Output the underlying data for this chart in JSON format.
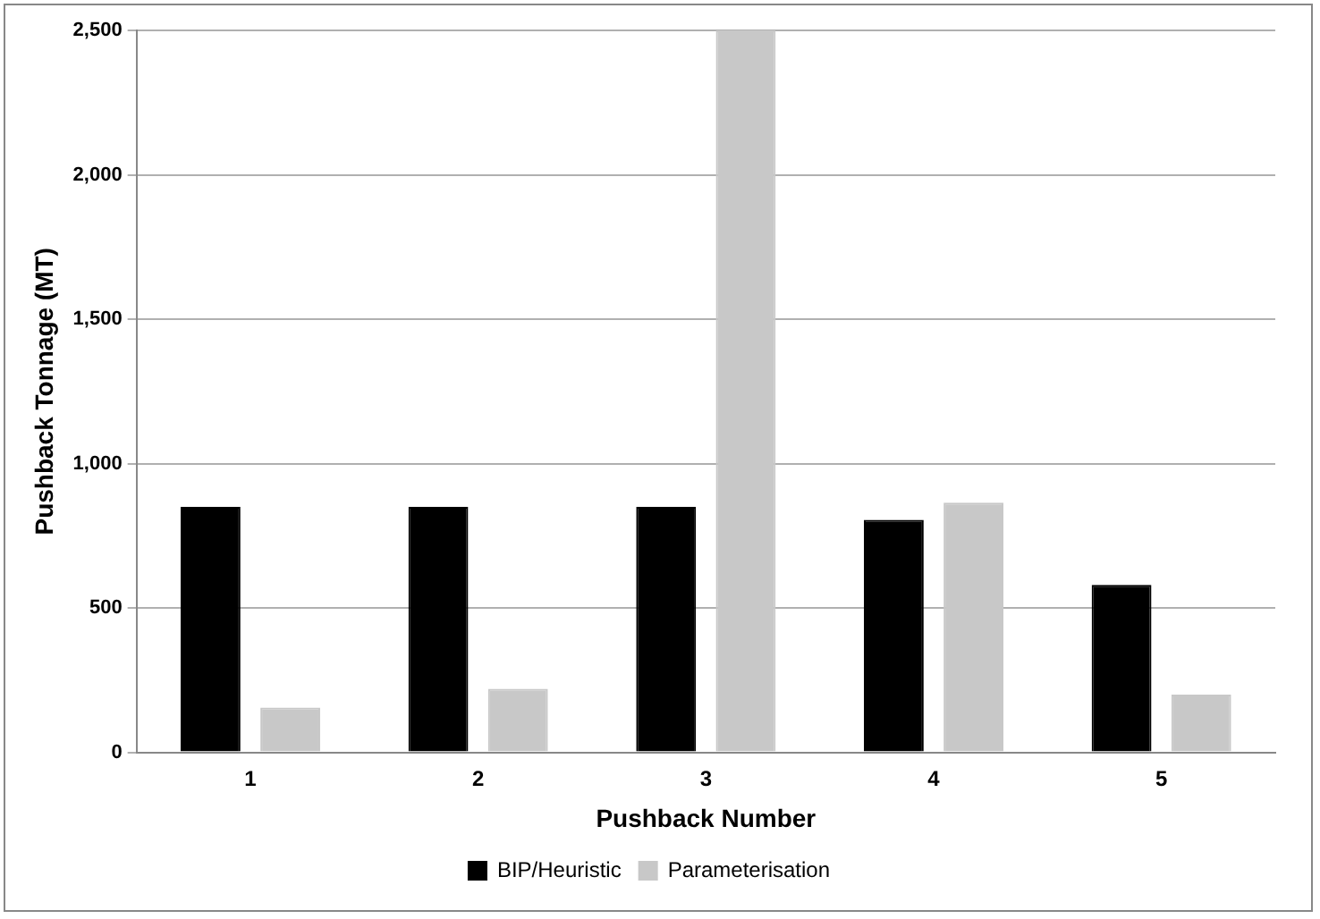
{
  "chart_data": {
    "type": "bar",
    "xlabel": "Pushback Number",
    "ylabel": "Pushback Tonnage (MT)",
    "categories": [
      "1",
      "2",
      "3",
      "4",
      "5"
    ],
    "series": [
      {
        "name": "BIP/Heuristic",
        "color": "#000000",
        "values": [
          850,
          850,
          850,
          805,
          580
        ]
      },
      {
        "name": "Parameterisation",
        "color": "#c8c8c8",
        "values": [
          155,
          220,
          2500,
          865,
          200
        ]
      }
    ],
    "ylim": [
      0,
      2500
    ],
    "yticks": [
      {
        "value": 0,
        "label": "0"
      },
      {
        "value": 500,
        "label": "500"
      },
      {
        "value": 1000,
        "label": "1,000"
      },
      {
        "value": 1500,
        "label": "1,500"
      },
      {
        "value": 2000,
        "label": "2,000"
      },
      {
        "value": 2500,
        "label": "2,500"
      }
    ],
    "grid": "y",
    "legend": "bottom"
  }
}
